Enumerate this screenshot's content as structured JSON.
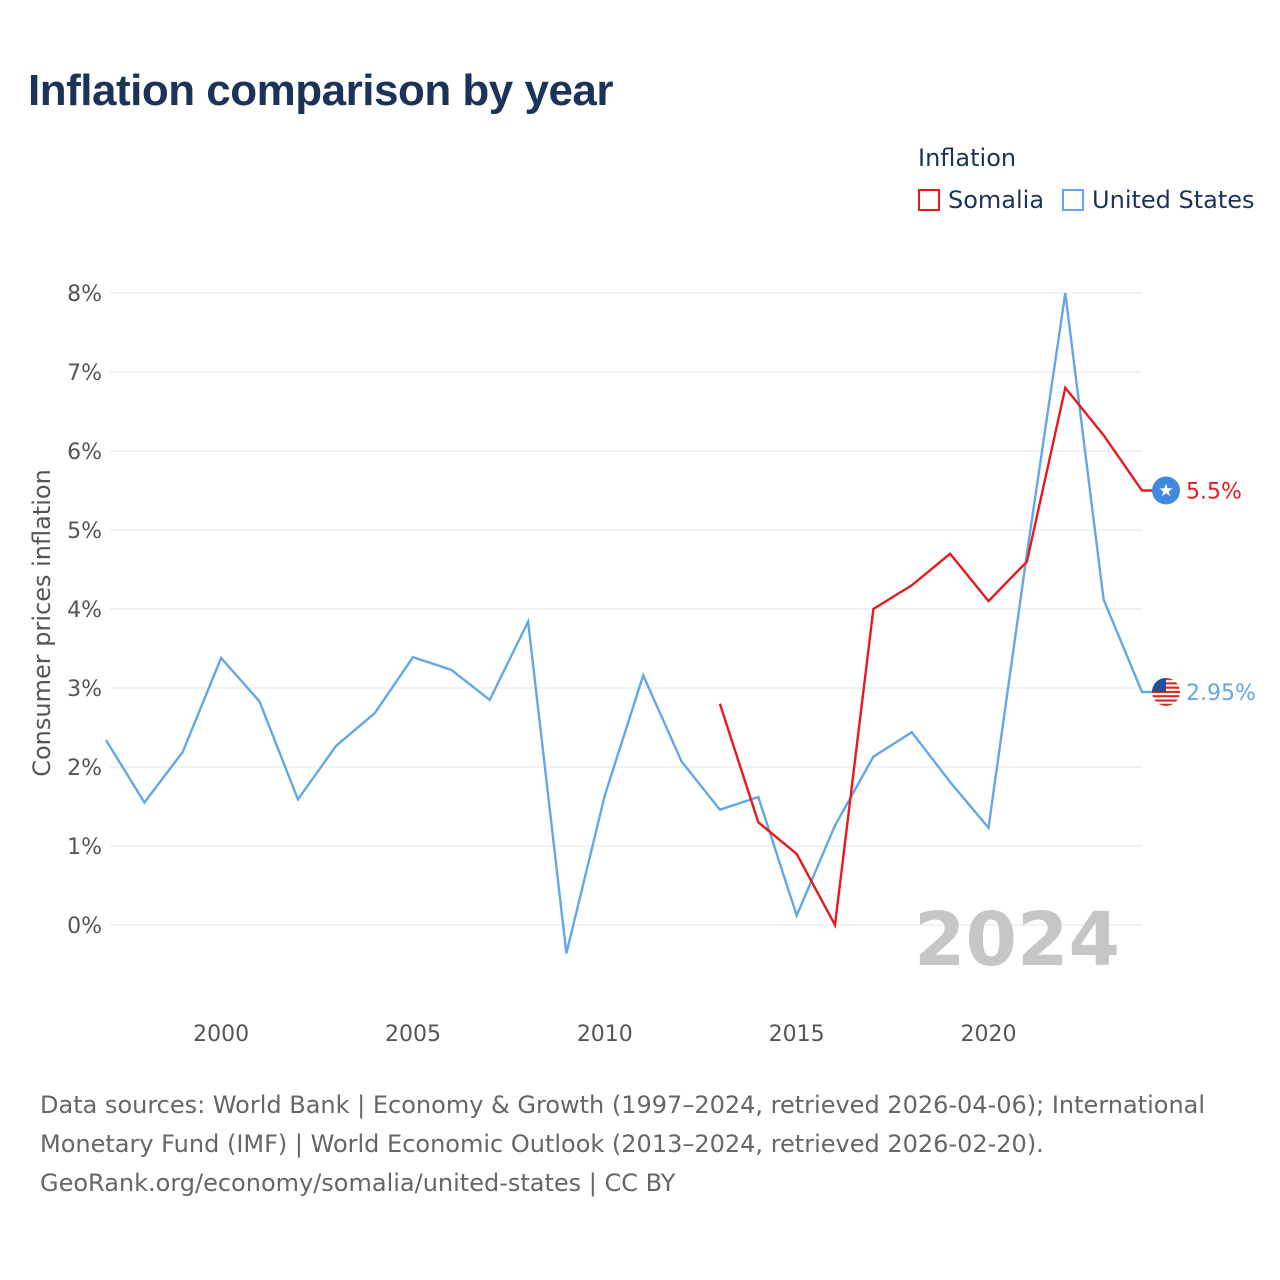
{
  "title": "Inflation comparison by year",
  "legend": {
    "title": "Inflation",
    "items": [
      {
        "name": "Somalia",
        "color": "#e6191e"
      },
      {
        "name": "United States",
        "color": "#63a7e6"
      }
    ]
  },
  "chart_data": {
    "type": "line",
    "title": "Inflation comparison by year",
    "xlabel": "",
    "ylabel": "Consumer prices inflation",
    "xlim": [
      1997,
      2024
    ],
    "ylim": [
      -1,
      8
    ],
    "x_ticks": [
      2000,
      2005,
      2010,
      2015,
      2020
    ],
    "y_ticks": [
      0,
      1,
      2,
      3,
      4,
      5,
      6,
      7,
      8
    ],
    "y_tick_labels": [
      "0%",
      "1%",
      "2%",
      "3%",
      "4%",
      "5%",
      "6%",
      "7%",
      "8%"
    ],
    "grid": "horizontal",
    "legend_position": "top-right",
    "watermark_year": "2024",
    "series": [
      {
        "name": "Somalia",
        "color": "#e6191e",
        "icon": "somalia-flag-icon",
        "end_label": "5.5%",
        "x": [
          2013,
          2014,
          2015,
          2016,
          2017,
          2018,
          2019,
          2020,
          2021,
          2022,
          2023,
          2024
        ],
        "values": [
          2.8,
          1.3,
          0.9,
          0.0,
          4.0,
          4.3,
          4.7,
          4.1,
          4.6,
          6.8,
          6.2,
          5.5
        ]
      },
      {
        "name": "United States",
        "color": "#63a7e6",
        "icon": "us-flag-icon",
        "end_label": "2.95%",
        "x": [
          1997,
          1998,
          1999,
          2000,
          2001,
          2002,
          2003,
          2004,
          2005,
          2006,
          2007,
          2008,
          2009,
          2010,
          2011,
          2012,
          2013,
          2014,
          2015,
          2016,
          2017,
          2018,
          2019,
          2020,
          2021,
          2022,
          2023,
          2024
        ],
        "values": [
          2.34,
          1.55,
          2.19,
          3.38,
          2.83,
          1.59,
          2.27,
          2.68,
          3.39,
          3.23,
          2.85,
          3.84,
          -0.36,
          1.64,
          3.16,
          2.07,
          1.46,
          1.62,
          0.12,
          1.26,
          2.13,
          2.44,
          1.81,
          1.23,
          4.7,
          8.0,
          4.12,
          2.95
        ]
      }
    ]
  },
  "footer": {
    "line1": "Data sources: World Bank | Economy & Growth (1997–2024, retrieved 2026-04-06); International",
    "line2": "Monetary Fund (IMF) | World Economic Outlook (2013–2024, retrieved 2026-02-20).",
    "line3": "GeoRank.org/economy/somalia/united-states | CC BY"
  }
}
